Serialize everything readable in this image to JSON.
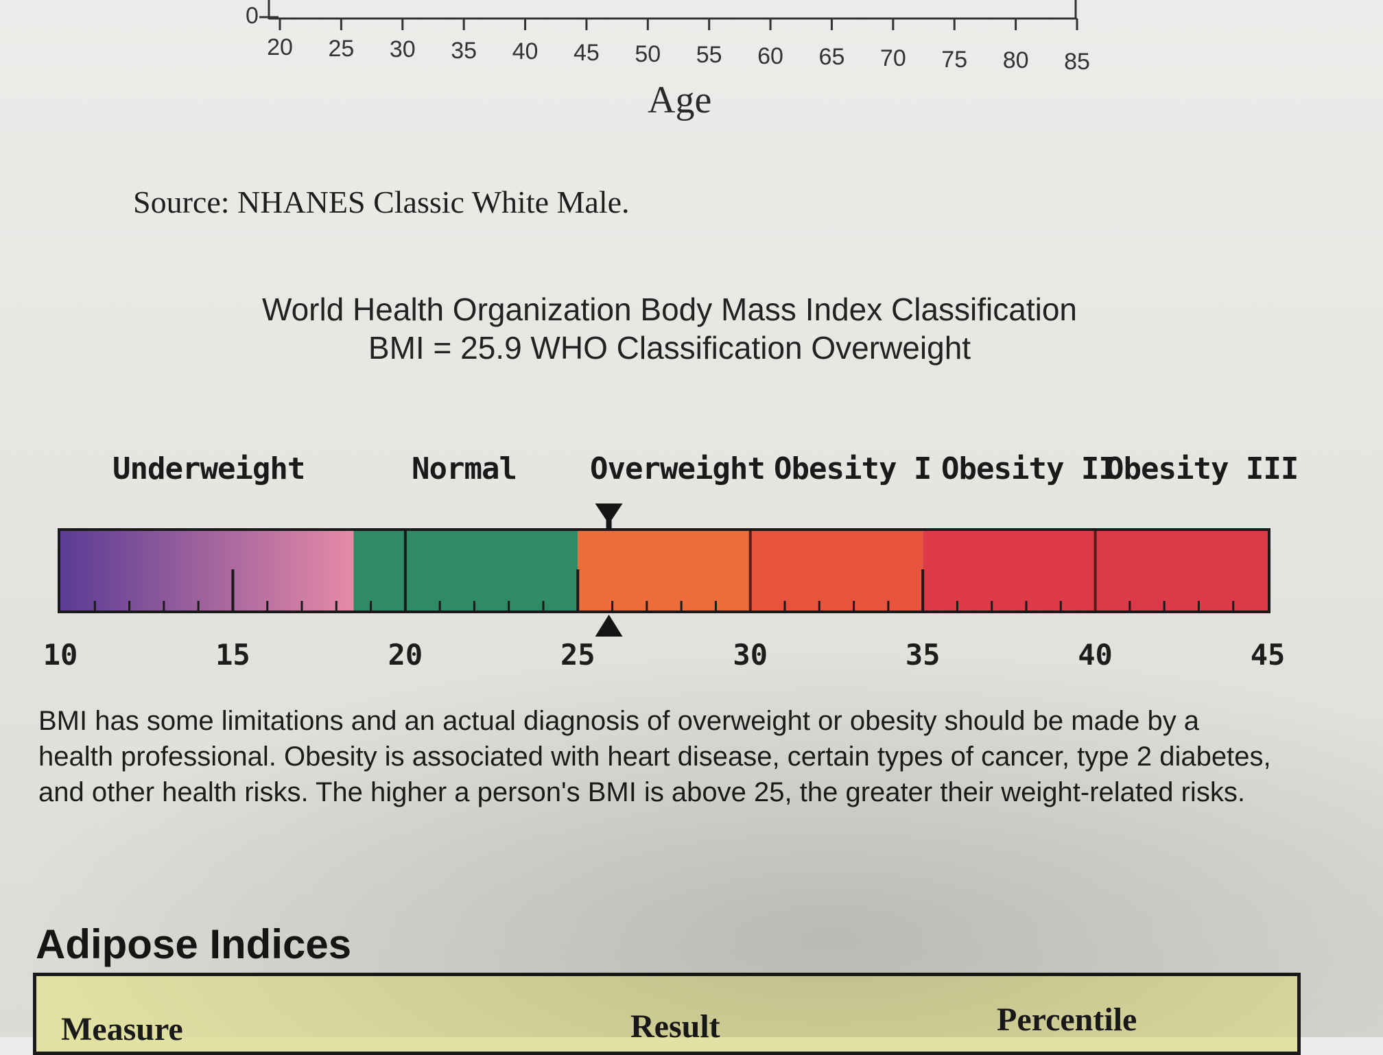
{
  "age_chart": {
    "y_zero_label": "0",
    "x_ticks": [
      "20",
      "25",
      "30",
      "35",
      "40",
      "45",
      "50",
      "55",
      "60",
      "65",
      "70",
      "75",
      "80",
      "85"
    ],
    "x_label": "Age",
    "source": "Source: NHANES Classic White Male."
  },
  "who": {
    "title": "World Health Organization Body Mass Index Classification",
    "subtitle": "BMI = 25.9 WHO Classification Overweight",
    "categories": [
      "Underweight",
      "Normal",
      "Overweight",
      "Obesity I",
      "Obesity II",
      "Obesity III"
    ],
    "scale_labels": [
      "10",
      "15",
      "20",
      "25",
      "30",
      "35",
      "40",
      "45"
    ]
  },
  "chart_data": {
    "type": "bar",
    "title": "World Health Organization Body Mass Index Classification",
    "scale_min": 10,
    "scale_max": 45,
    "marker_value": 25.9,
    "segments": [
      {
        "name": "Underweight",
        "from": 10,
        "to": 18.5,
        "color_start": "#5a3c94",
        "color_end": "#e68aa6"
      },
      {
        "name": "Normal",
        "from": 18.5,
        "to": 25,
        "color": "#2f8a67"
      },
      {
        "name": "Overweight",
        "from": 25,
        "to": 30,
        "color": "#ec6c3c"
      },
      {
        "name": "Obesity I",
        "from": 30,
        "to": 35,
        "color": "#e8533e"
      },
      {
        "name": "Obesity II",
        "from": 35,
        "to": 40,
        "color": "#df3a48"
      },
      {
        "name": "Obesity III",
        "from": 40,
        "to": 45,
        "color": "#dc3949"
      }
    ],
    "major_ticks": [
      15,
      20,
      25,
      30,
      35,
      40
    ],
    "minor_step": 1
  },
  "paragraph": "BMI has some limitations and an actual diagnosis of overweight or obesity should be made by a health professional.  Obesity is associated with heart disease, certain types of cancer, type 2 diabetes, and other health risks.  The higher a person's BMI is above 25, the greater their weight-related risks.",
  "adipose": {
    "heading": "Adipose Indices",
    "columns": [
      "Measure",
      "Result",
      "Percentile"
    ]
  }
}
